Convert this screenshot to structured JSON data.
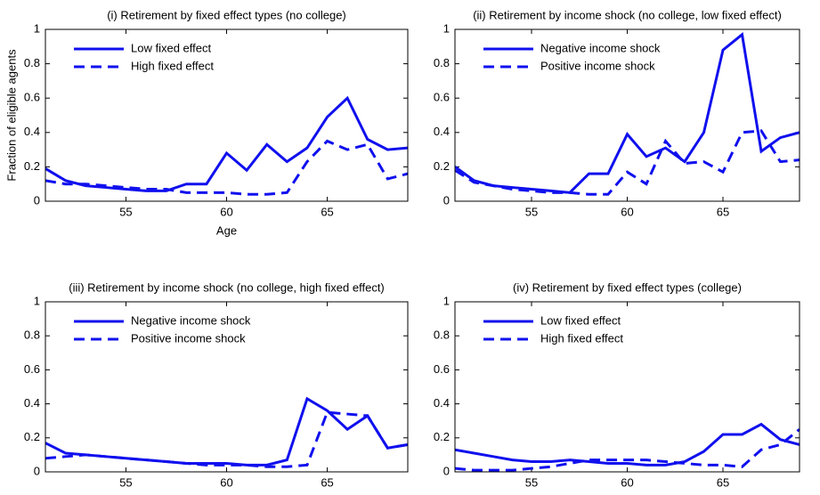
{
  "chart_data": [
    {
      "type": "line",
      "title": "(i) Retirement by fixed effect types (no college)",
      "y_label": "Fraction of eligible agents",
      "x_label": "Age",
      "x": [
        51,
        52,
        53,
        54,
        55,
        56,
        57,
        58,
        59,
        60,
        61,
        62,
        63,
        64,
        65,
        66,
        67,
        68,
        69
      ],
      "xlim": [
        51,
        69
      ],
      "xticks": [
        55,
        60,
        65
      ],
      "ylim": [
        0,
        1
      ],
      "yticks": [
        0,
        0.2,
        0.4,
        0.6,
        0.8,
        1
      ],
      "legend": "upper left",
      "series": [
        {
          "name": "Low fixed effect",
          "color": "#1010ee",
          "linestyle": "solid",
          "values": [
            0.19,
            0.12,
            0.09,
            0.08,
            0.07,
            0.06,
            0.06,
            0.1,
            0.1,
            0.28,
            0.18,
            0.33,
            0.23,
            0.31,
            0.49,
            0.6,
            0.36,
            0.3,
            0.31
          ]
        },
        {
          "name": "High fixed effect",
          "color": "#1010ee",
          "linestyle": "dashed",
          "values": [
            0.12,
            0.1,
            0.1,
            0.09,
            0.08,
            0.07,
            0.07,
            0.05,
            0.05,
            0.05,
            0.04,
            0.04,
            0.05,
            0.23,
            0.35,
            0.3,
            0.33,
            0.13,
            0.16
          ]
        }
      ]
    },
    {
      "type": "line",
      "title": "(ii) Retirement by income shock (no college, low fixed effect)",
      "x": [
        51,
        52,
        53,
        54,
        55,
        56,
        57,
        58,
        59,
        60,
        61,
        62,
        63,
        64,
        65,
        66,
        67,
        68,
        69
      ],
      "xlim": [
        51,
        69
      ],
      "xticks": [
        55,
        60,
        65
      ],
      "ylim": [
        0,
        1
      ],
      "yticks": [
        0,
        0.2,
        0.4,
        0.6,
        0.8,
        1
      ],
      "legend": "upper left",
      "series": [
        {
          "name": "Negative income shock",
          "color": "#1010ee",
          "linestyle": "solid",
          "values": [
            0.2,
            0.12,
            0.09,
            0.08,
            0.07,
            0.06,
            0.05,
            0.16,
            0.16,
            0.39,
            0.26,
            0.31,
            0.23,
            0.4,
            0.88,
            0.97,
            0.29,
            0.37,
            0.4
          ]
        },
        {
          "name": "Positive income shock",
          "color": "#1010ee",
          "linestyle": "dashed",
          "values": [
            0.18,
            0.11,
            0.09,
            0.07,
            0.06,
            0.05,
            0.05,
            0.04,
            0.04,
            0.17,
            0.1,
            0.35,
            0.22,
            0.23,
            0.17,
            0.4,
            0.41,
            0.23,
            0.24
          ]
        }
      ]
    },
    {
      "type": "line",
      "title": "(iii) Retirement by income shock (no college, high fixed effect)",
      "x": [
        51,
        52,
        53,
        54,
        55,
        56,
        57,
        58,
        59,
        60,
        61,
        62,
        63,
        64,
        65,
        66,
        67,
        68,
        69
      ],
      "xlim": [
        51,
        69
      ],
      "xticks": [
        55,
        60,
        65
      ],
      "ylim": [
        0,
        1
      ],
      "yticks": [
        0,
        0.2,
        0.4,
        0.6,
        0.8,
        1
      ],
      "legend": "upper left",
      "series": [
        {
          "name": "Negative income shock",
          "color": "#1010ee",
          "linestyle": "solid",
          "values": [
            0.17,
            0.11,
            0.1,
            0.09,
            0.08,
            0.07,
            0.06,
            0.05,
            0.05,
            0.05,
            0.04,
            0.04,
            0.07,
            0.43,
            0.36,
            0.25,
            0.33,
            0.14,
            0.16
          ]
        },
        {
          "name": "Positive income shock",
          "color": "#1010ee",
          "linestyle": "dashed",
          "values": [
            0.08,
            0.09,
            0.1,
            0.09,
            0.08,
            0.07,
            0.06,
            0.05,
            0.04,
            0.04,
            0.04,
            0.03,
            0.03,
            0.04,
            0.35,
            0.34,
            0.33,
            0.14,
            0.16
          ]
        }
      ]
    },
    {
      "type": "line",
      "title": "(iv) Retirement by fixed effect types (college)",
      "x": [
        51,
        52,
        53,
        54,
        55,
        56,
        57,
        58,
        59,
        60,
        61,
        62,
        63,
        64,
        65,
        66,
        67,
        68,
        69
      ],
      "xlim": [
        51,
        69
      ],
      "xticks": [
        55,
        60,
        65
      ],
      "ylim": [
        0,
        1
      ],
      "yticks": [
        0,
        0.2,
        0.4,
        0.6,
        0.8,
        1
      ],
      "legend": "upper left",
      "series": [
        {
          "name": "Low fixed effect",
          "color": "#1010ee",
          "linestyle": "solid",
          "values": [
            0.13,
            0.11,
            0.09,
            0.07,
            0.06,
            0.06,
            0.07,
            0.06,
            0.05,
            0.05,
            0.04,
            0.04,
            0.06,
            0.12,
            0.22,
            0.22,
            0.28,
            0.19,
            0.16
          ]
        },
        {
          "name": "High fixed effect",
          "color": "#1010ee",
          "linestyle": "dashed",
          "values": [
            0.02,
            0.01,
            0.01,
            0.01,
            0.02,
            0.03,
            0.05,
            0.07,
            0.07,
            0.07,
            0.07,
            0.06,
            0.05,
            0.04,
            0.04,
            0.03,
            0.13,
            0.16,
            0.25
          ]
        }
      ]
    }
  ]
}
